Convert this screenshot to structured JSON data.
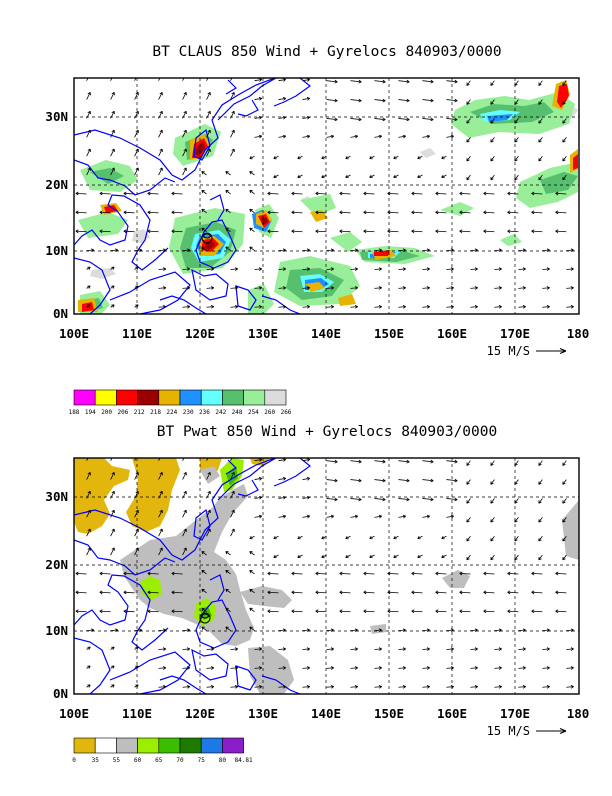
{
  "panels": [
    {
      "title": "BT CLAUS 850 Wind + Gyrelocs 840903/0000",
      "field": "CLAUS",
      "ylabels": [
        "30N",
        "20N",
        "10N",
        "0N"
      ],
      "xlabels": [
        "100E",
        "110E",
        "120E",
        "130E",
        "140E",
        "150E",
        "160E",
        "170E",
        "180"
      ],
      "ref_vector": "15 M/S",
      "colorbar": {
        "labels": [
          "188",
          "194",
          "200",
          "206",
          "212",
          "218",
          "224",
          "230",
          "236",
          "242",
          "248",
          "254",
          "260",
          "266"
        ],
        "colors": [
          "#ff00ff",
          "#ffff00",
          "#ff0000",
          "#9a0000",
          "#e6b400",
          "#1e90ff",
          "#66ffff",
          "#56c06e",
          "#99ee99",
          "#dcdcdc"
        ]
      }
    },
    {
      "title": "BT Pwat 850 Wind + Gyrelocs 840903/0000",
      "field": "Pwat",
      "ylabels": [
        "30N",
        "20N",
        "10N",
        "0N"
      ],
      "xlabels": [
        "100E",
        "110E",
        "120E",
        "130E",
        "140E",
        "150E",
        "160E",
        "170E",
        "180"
      ],
      "ref_vector": "15 M/S",
      "colorbar": {
        "labels": [
          "0",
          "35",
          "55",
          "60",
          "65",
          "70",
          "75",
          "80",
          "84.81"
        ],
        "colors": [
          "#e2b60c",
          "#ffffff",
          "#bebebe",
          "#9bee00",
          "#3cbe00",
          "#1e7a00",
          "#1e78e6",
          "#8a1ec8"
        ]
      }
    }
  ],
  "colors": {
    "coast": "#0000ff",
    "frame": "#000000",
    "grid": "#000000"
  }
}
